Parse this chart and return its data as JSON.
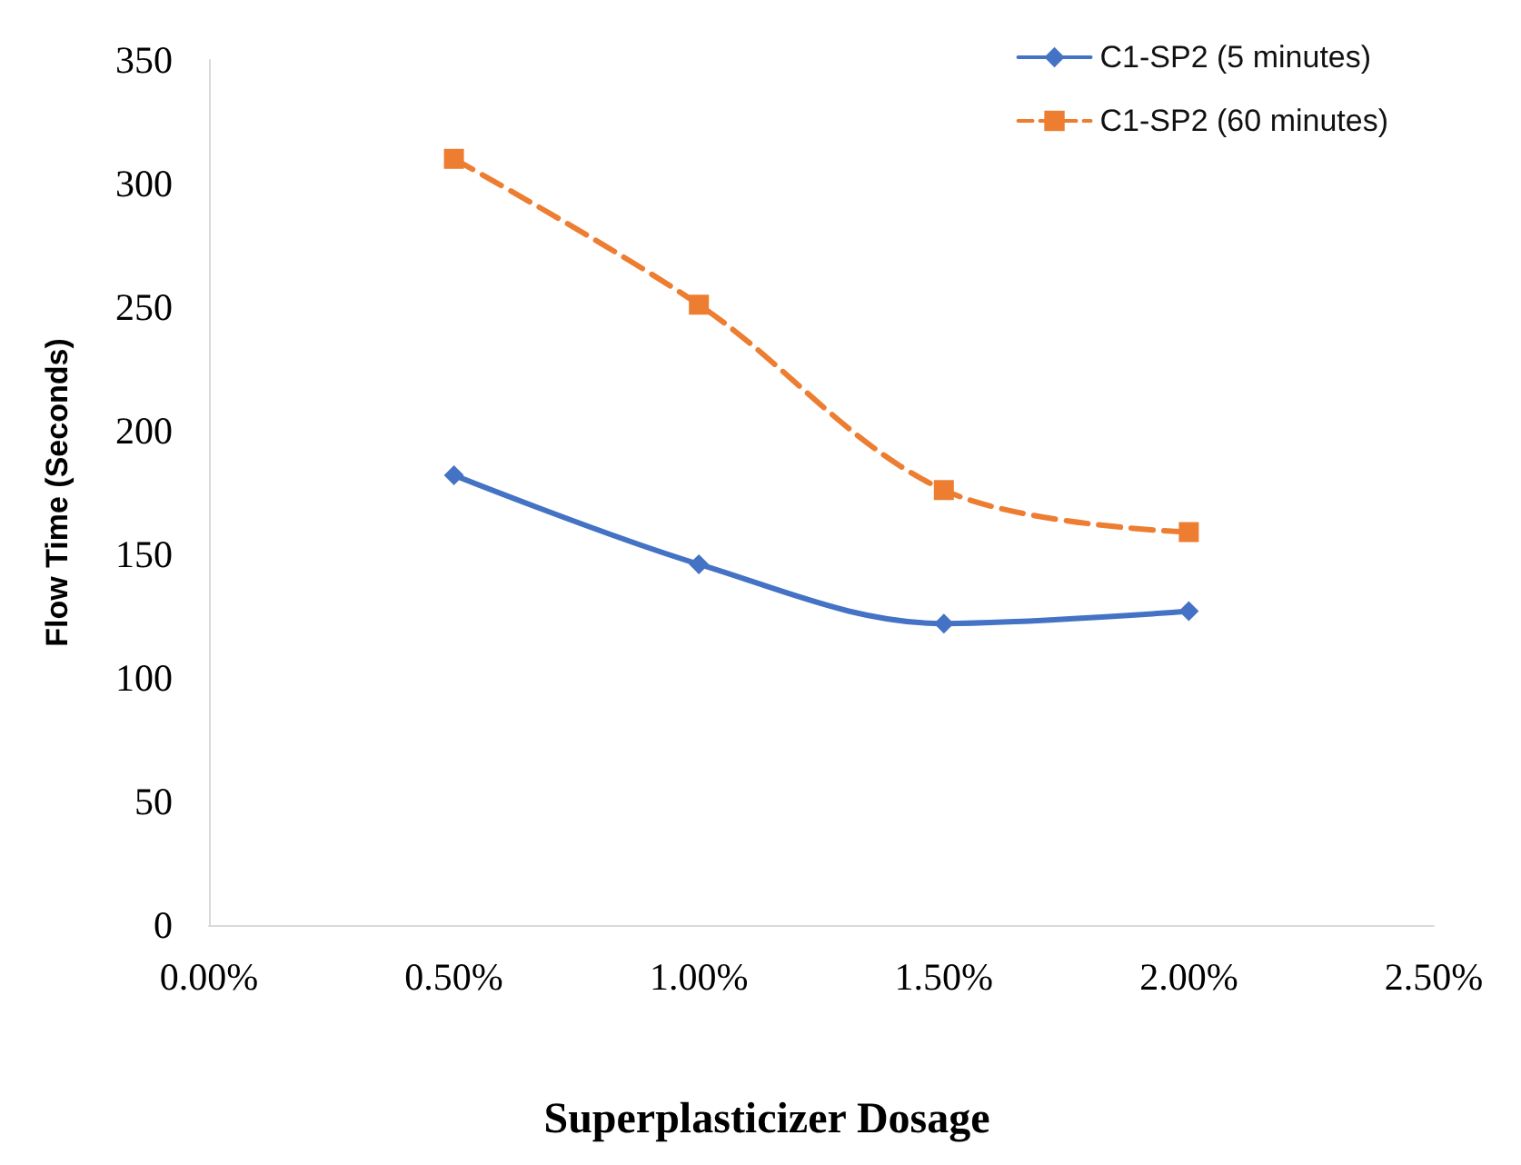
{
  "chart_data": {
    "type": "line",
    "xlabel": "Superplasticizer Dosage",
    "ylabel": "Flow Time (Seconds)",
    "series": [
      {
        "name": "C1-SP2 (5 minutes)",
        "color": "#4472c4",
        "marker": "diamond",
        "line_style": "solid",
        "x": [
          0.5,
          1.0,
          1.5,
          2.0
        ],
        "values": [
          182,
          146,
          122,
          127
        ]
      },
      {
        "name": "C1-SP2 (60 minutes)",
        "color": "#ed7d31",
        "marker": "square",
        "line_style": "dashed",
        "x": [
          0.5,
          1.0,
          1.5,
          2.0
        ],
        "values": [
          310,
          251,
          176,
          159
        ]
      }
    ],
    "xlim": [
      0,
      2.5
    ],
    "xticks": [
      {
        "value": 0,
        "label": "0.00%"
      },
      {
        "value": 0.5,
        "label": "0.50%"
      },
      {
        "value": 1.0,
        "label": "1.00%"
      },
      {
        "value": 1.5,
        "label": "1.50%"
      },
      {
        "value": 2.0,
        "label": "2.00%"
      },
      {
        "value": 2.5,
        "label": "2.50%"
      }
    ],
    "ylim": [
      0,
      350
    ],
    "yticks": [
      0,
      50,
      100,
      150,
      200,
      250,
      300,
      350
    ],
    "grid": false,
    "legend": "top right"
  }
}
